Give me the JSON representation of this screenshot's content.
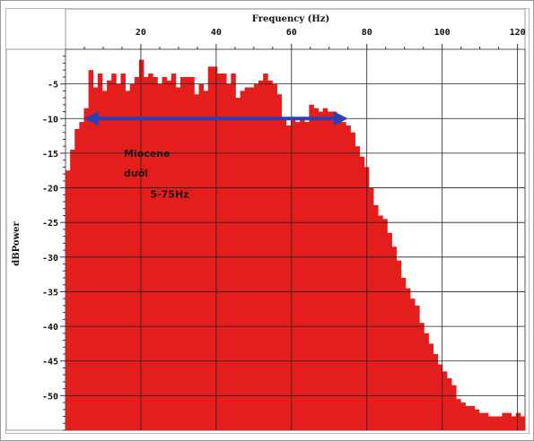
{
  "chart_data": {
    "type": "bar",
    "title": "",
    "xlabel": "Frequency (Hz)",
    "ylabel": "dBPower",
    "xlim": [
      0,
      122
    ],
    "ylim": [
      -55,
      0
    ],
    "xticks": [
      20,
      40,
      60,
      80,
      100,
      120
    ],
    "yticks": [
      -5,
      -10,
      -15,
      -20,
      -25,
      -30,
      -35,
      -40,
      -45,
      -50
    ],
    "grid": true,
    "bar_color": "#e41d1d",
    "bin_width_hz": 1.22,
    "series": [
      {
        "x": [
          0.61,
          1.83,
          3.05,
          4.27,
          5.49,
          6.71,
          7.93,
          9.15,
          10.37,
          11.59,
          12.81,
          14.03,
          15.25,
          16.47,
          17.69,
          18.91,
          20.13,
          21.35,
          22.57,
          23.79,
          25.01,
          26.23,
          27.45,
          28.67,
          29.89,
          31.11,
          32.33,
          33.55,
          34.77,
          35.99,
          37.21,
          38.43,
          39.65,
          40.87,
          42.09,
          43.31,
          44.53,
          45.75,
          46.97,
          48.19,
          49.41,
          50.63,
          51.85,
          53.07,
          54.29,
          55.51,
          56.73,
          57.95,
          59.17,
          60.39,
          61.61,
          62.83,
          64.05,
          65.27,
          66.49,
          67.71,
          68.93,
          70.15,
          71.37,
          72.59,
          73.81,
          75.03,
          76.25,
          77.47,
          78.69,
          79.91,
          81.13,
          82.35,
          83.57,
          84.79,
          86.01,
          87.23,
          88.45,
          89.67,
          90.89,
          92.11,
          93.33,
          94.55,
          95.77,
          96.99,
          98.21,
          99.43,
          100.65,
          101.87,
          103.09,
          104.31,
          105.53,
          106.75,
          107.97,
          109.19,
          110.41,
          111.63,
          112.85,
          114.07,
          115.29,
          116.51,
          117.73,
          118.95,
          120.17,
          121.39
        ],
        "values": [
          -17.5,
          -14.5,
          -11.5,
          -10.5,
          -8.5,
          -3.0,
          -5.5,
          -3.5,
          -6.0,
          -4.5,
          -3.5,
          -5.0,
          -3.5,
          -6.0,
          -5.0,
          -4.0,
          -1.5,
          -4.0,
          -3.5,
          -4.0,
          -5.0,
          -4.0,
          -4.5,
          -3.5,
          -5.5,
          -4.0,
          -4.0,
          -4.0,
          -6.5,
          -5.0,
          -6.0,
          -2.5,
          -2.5,
          -3.5,
          -3.5,
          -5.0,
          -3.5,
          -7.0,
          -6.0,
          -5.5,
          -5.5,
          -5.0,
          -4.5,
          -3.5,
          -4.5,
          -5.0,
          -6.5,
          -10.0,
          -11.0,
          -10.0,
          -10.5,
          -10.0,
          -10.5,
          -8.0,
          -8.5,
          -9.0,
          -8.5,
          -9.0,
          -9.0,
          -9.5,
          -10.5,
          -11.0,
          -12.0,
          -14.0,
          -15.5,
          -17.0,
          -20.0,
          -22.5,
          -24.0,
          -24.5,
          -26.5,
          -28.5,
          -30.5,
          -33.0,
          -34.5,
          -36.0,
          -37.0,
          -39.5,
          -41.0,
          -42.5,
          -44.0,
          -45.5,
          -46.5,
          -47.5,
          -48.5,
          -50.5,
          -51.0,
          -51.5,
          -51.5,
          -52.0,
          -52.5,
          -52.5,
          -53.0,
          -53.0,
          -53.0,
          -52.5,
          -52.5,
          -53.0,
          -52.5,
          -53.0
        ]
      }
    ],
    "annotation": {
      "line1": "Miocene",
      "line2": "dưới",
      "line3": "5-75Hz",
      "arrow_from_hz": 5,
      "arrow_to_hz": 75,
      "arrow_db": -10,
      "arrow_color": "#2b3fb5"
    }
  }
}
